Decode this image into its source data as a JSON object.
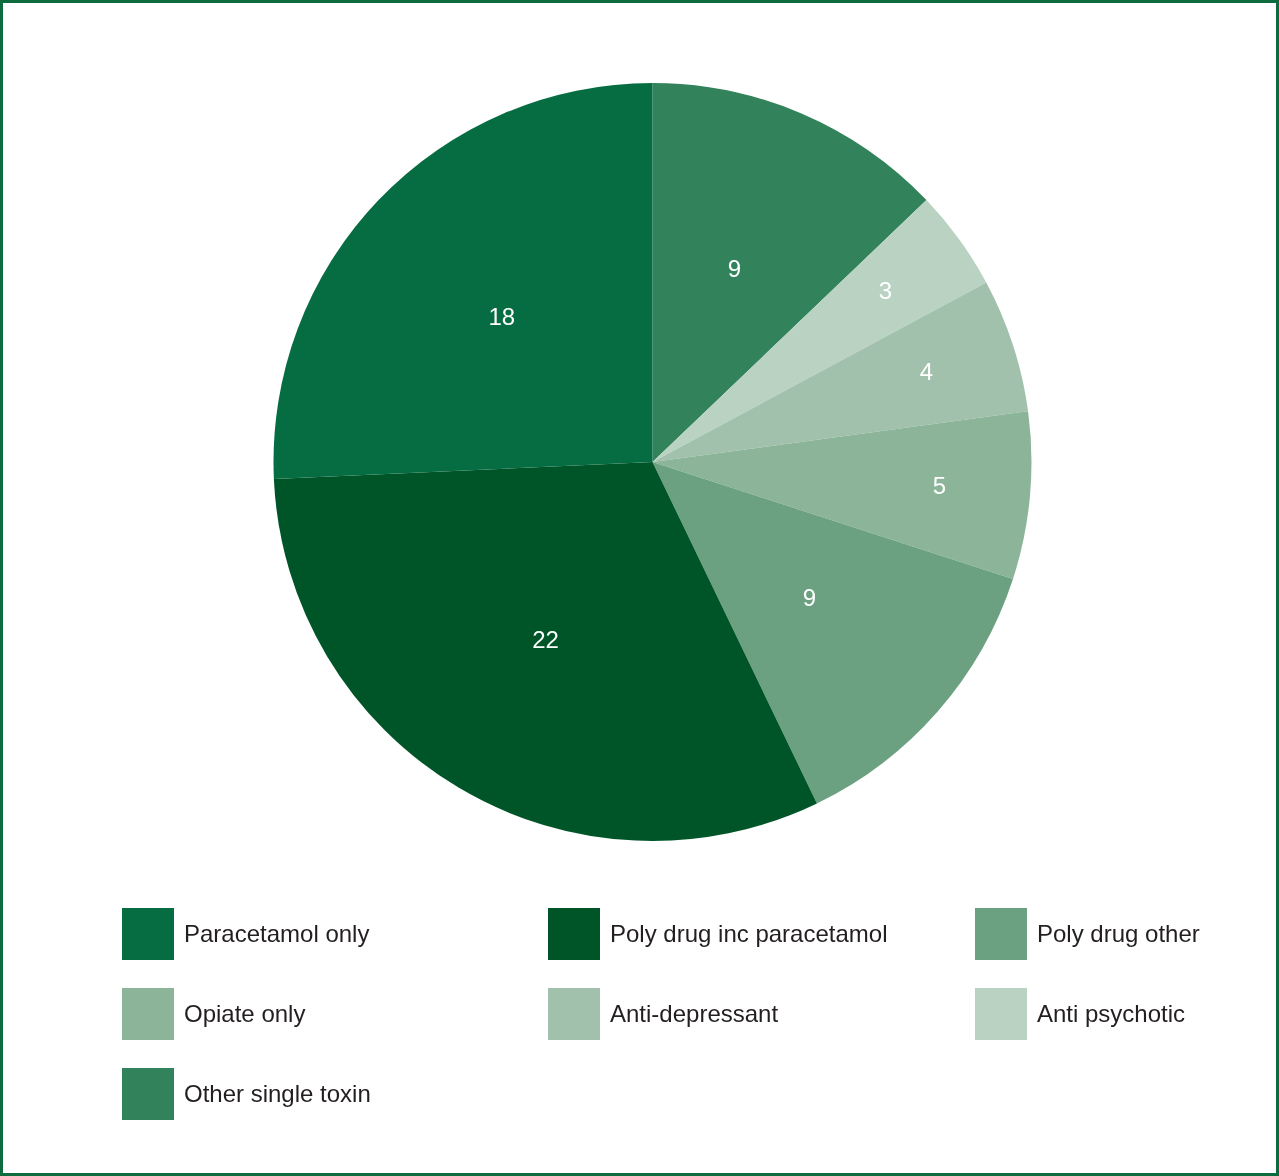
{
  "chart_data": {
    "type": "pie",
    "categories": [
      "Paracetamol only",
      "Poly drug inc paracetamol",
      "Poly drug other",
      "Opiate only",
      "Anti-depressant",
      "Anti psychotic",
      "Other single toxin"
    ],
    "values": [
      18,
      22,
      9,
      5,
      4,
      3,
      9
    ],
    "colors": [
      "#066d42",
      "#005528",
      "#6ba181",
      "#8bb498",
      "#a1c1ad",
      "#b9d2c2",
      "#32825c"
    ],
    "data_labels": true,
    "legend": "bottom"
  }
}
